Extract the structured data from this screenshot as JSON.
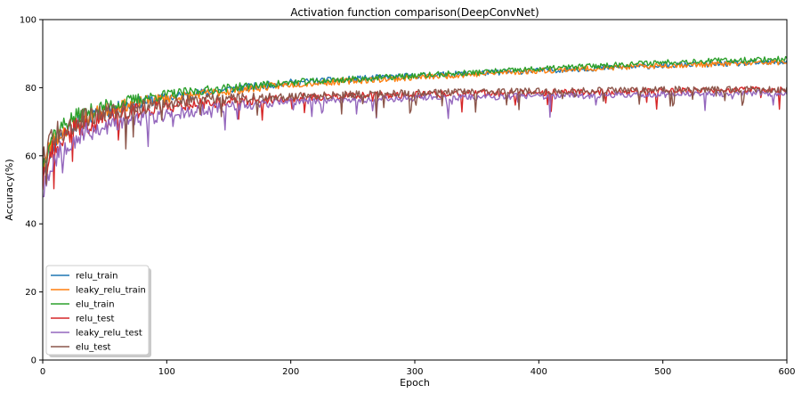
{
  "chart_data": {
    "type": "line",
    "title": "Activation function comparison(DeepConvNet)",
    "xlabel": "Epoch",
    "ylabel": "Accuracy(%)",
    "xlim": [
      0,
      600
    ],
    "ylim": [
      0,
      100
    ],
    "xticks": [
      "0",
      "100",
      "200",
      "300",
      "400",
      "500",
      "600"
    ],
    "yticks": [
      "0",
      "20",
      "40",
      "60",
      "80",
      "100"
    ],
    "grid": false,
    "legend_position": "lower-left",
    "series": [
      {
        "name": "relu_train",
        "color": "#1f77b4",
        "group": "train",
        "seed": 11,
        "x": [
          0,
          5,
          10,
          20,
          30,
          50,
          75,
          100,
          150,
          200,
          250,
          300,
          400,
          500,
          600
        ],
        "y": [
          55,
          61,
          64,
          68,
          70,
          73,
          75.5,
          77,
          79.5,
          81.5,
          82.5,
          83.5,
          85,
          86.5,
          87.5
        ]
      },
      {
        "name": "leaky_relu_train",
        "color": "#ff7f0e",
        "group": "train",
        "seed": 23,
        "x": [
          0,
          5,
          10,
          20,
          30,
          50,
          75,
          100,
          150,
          200,
          250,
          300,
          400,
          500,
          600
        ],
        "y": [
          56,
          62,
          65,
          68.5,
          70.5,
          73.5,
          75.5,
          77,
          79,
          81,
          82,
          83,
          85,
          86.5,
          87.5
        ]
      },
      {
        "name": "elu_train",
        "color": "#2ca02c",
        "group": "train",
        "seed": 37,
        "x": [
          0,
          5,
          10,
          20,
          30,
          50,
          75,
          100,
          150,
          200,
          250,
          300,
          400,
          500,
          600
        ],
        "y": [
          57,
          64,
          67,
          70,
          72,
          74.5,
          76.5,
          78,
          80,
          81.5,
          82.5,
          83.5,
          85.5,
          87.5,
          88.5
        ]
      },
      {
        "name": "relu_test",
        "color": "#d62728",
        "group": "test",
        "seed": 41,
        "x": [
          0,
          5,
          10,
          20,
          30,
          50,
          75,
          100,
          150,
          200,
          250,
          300,
          400,
          500,
          600
        ],
        "y": [
          52,
          59,
          63,
          66,
          68.5,
          71,
          73,
          74.5,
          76,
          77,
          77.5,
          78,
          78.5,
          79,
          79.5
        ]
      },
      {
        "name": "leaky_relu_test",
        "color": "#9467bd",
        "group": "test",
        "seed": 53,
        "x": [
          0,
          5,
          10,
          20,
          30,
          50,
          75,
          100,
          150,
          200,
          250,
          300,
          400,
          500,
          600
        ],
        "y": [
          50,
          56,
          60,
          64,
          66,
          68.5,
          70.5,
          72,
          74.5,
          76,
          76.5,
          77,
          77.5,
          78,
          78.5
        ]
      },
      {
        "name": "elu_test",
        "color": "#8c564b",
        "group": "test",
        "seed": 67,
        "x": [
          0,
          5,
          10,
          20,
          30,
          50,
          75,
          100,
          150,
          200,
          250,
          300,
          400,
          500,
          600
        ],
        "y": [
          60,
          65,
          67,
          69,
          70.5,
          72.5,
          74,
          75.5,
          77,
          77.5,
          78,
          78.5,
          79,
          79.5,
          79.5
        ]
      }
    ]
  }
}
